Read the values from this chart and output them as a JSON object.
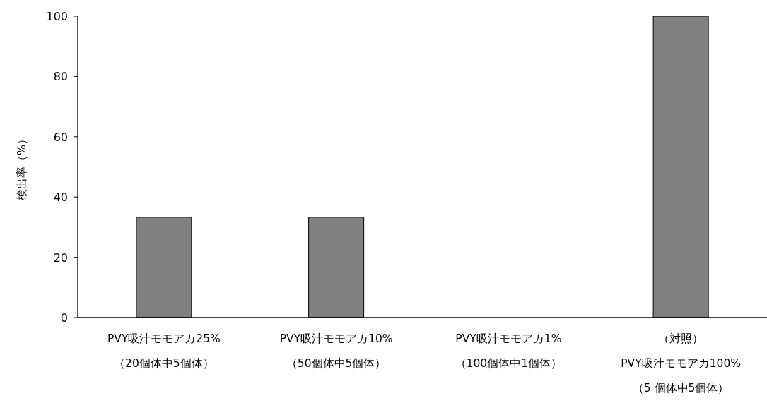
{
  "chart_data": {
    "type": "bar",
    "ylabel": "検出率（%）",
    "categories": [
      "PVY吸汁モモアカ25%\n（20個体中5個体）",
      "PVY吸汁モモアカ10%\n（50個体中5個体）",
      "PVY吸汁モモアカ1%\n（100個体中1個体）",
      "（対照）\nPVY吸汁モモアカ100%\n（5 個体中5個体）"
    ],
    "values": [
      33.3,
      33.3,
      0,
      100
    ],
    "color": "#808080",
    "ylim": [
      0,
      100
    ],
    "yticks": [
      0,
      20,
      40,
      60,
      80,
      100
    ],
    "grid": false
  }
}
